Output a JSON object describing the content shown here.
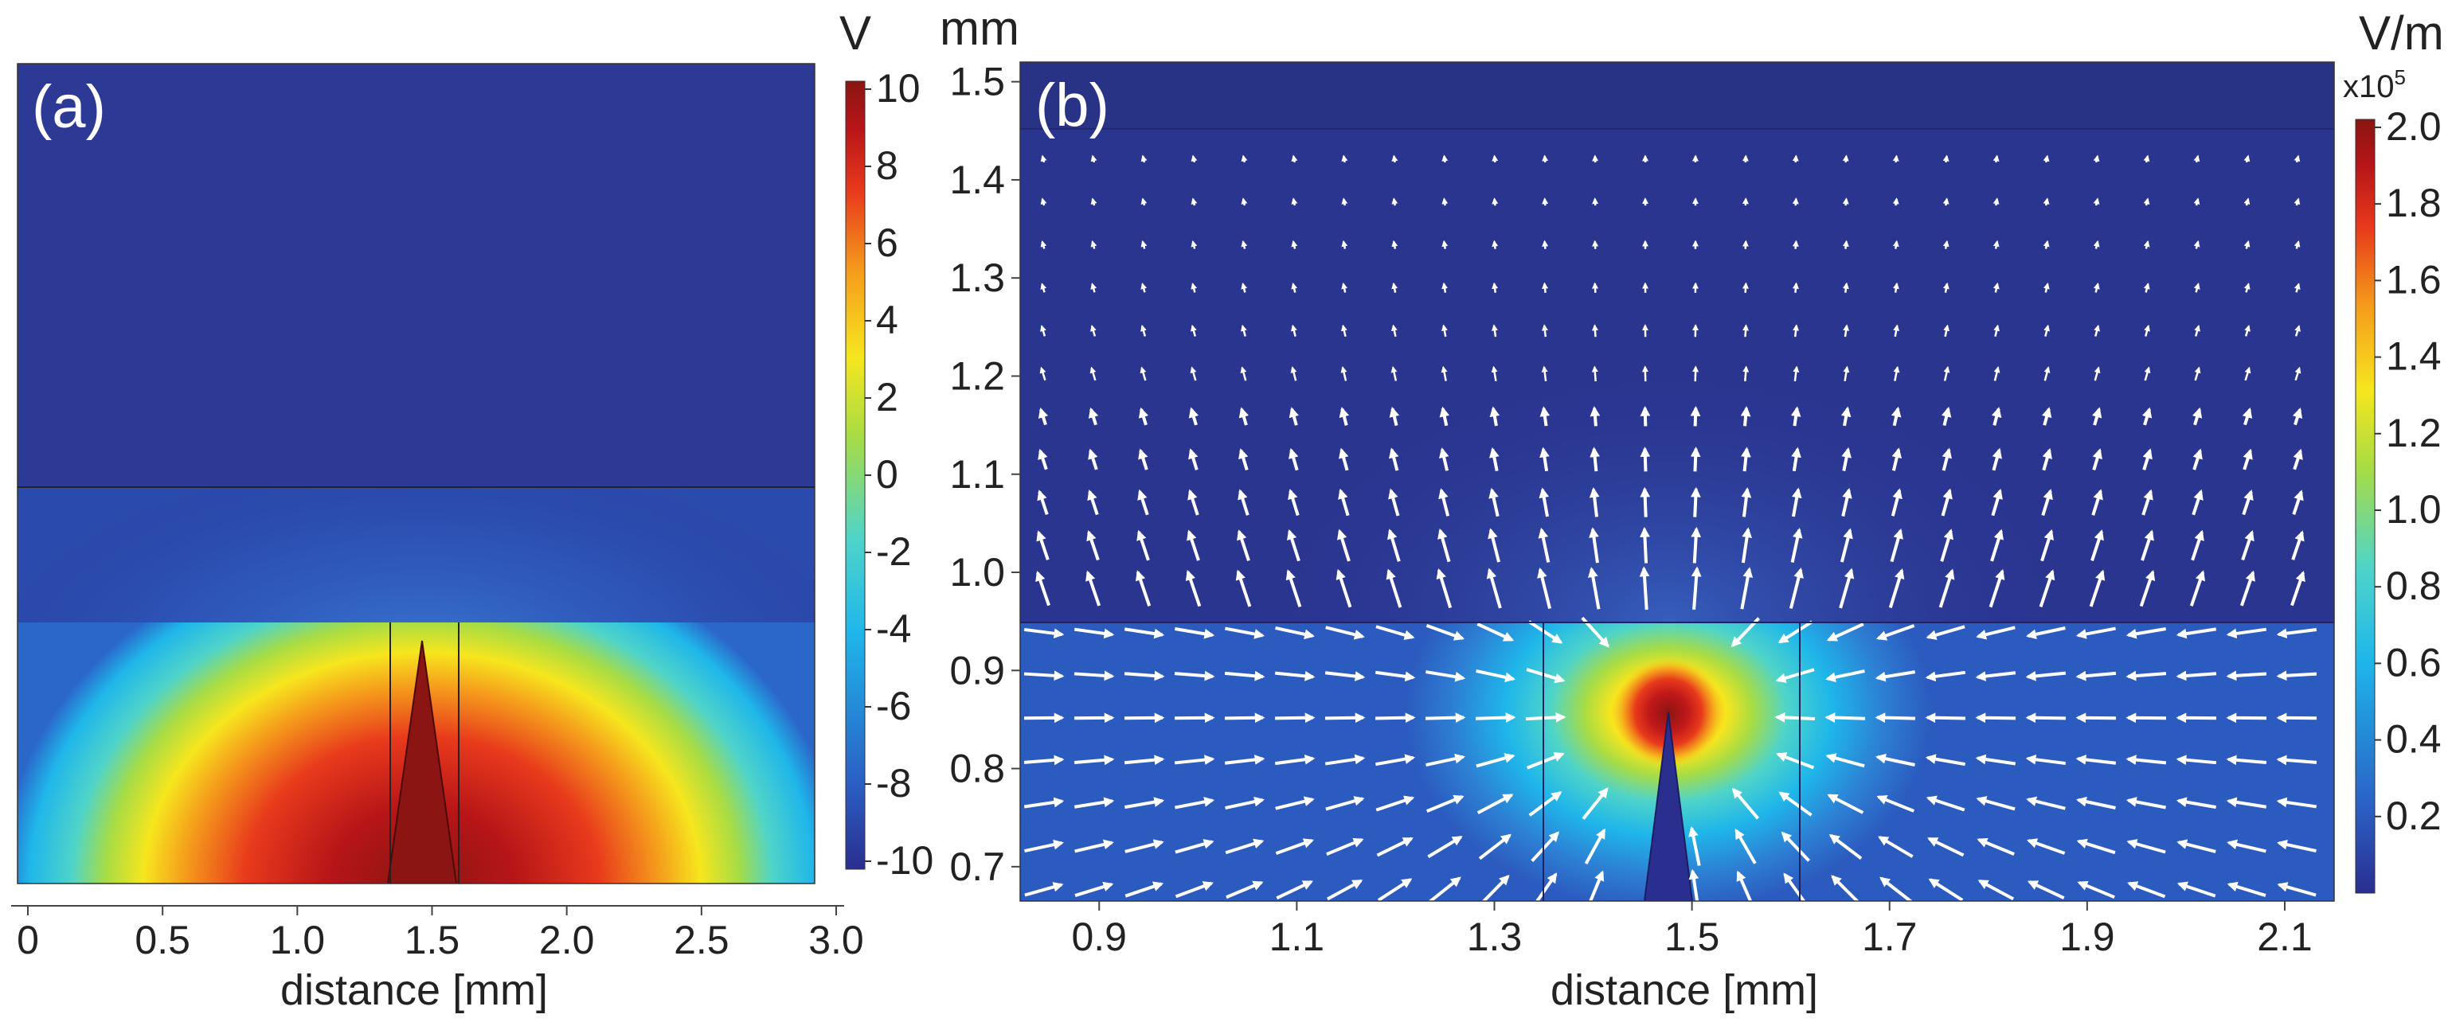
{
  "chart_data": [
    {
      "type": "heatmap",
      "panel_label": "(a)",
      "xlabel": "distance [mm]",
      "x_ticks": [
        "0",
        "0.5",
        "1.0",
        "1.5",
        "2.0",
        "2.5",
        "3.0"
      ],
      "x_tick_values": [
        0,
        0.5,
        1.0,
        1.5,
        2.0,
        2.5,
        3.0
      ],
      "xlim": [
        0,
        2.95
      ],
      "colorbar": {
        "unit": "V",
        "range": [
          -10,
          10
        ],
        "ticks": [
          "10",
          "8",
          "6",
          "4",
          "2",
          "0",
          "-2",
          "-4",
          "-6",
          "-8",
          "-10"
        ],
        "tick_values": [
          10,
          8,
          6,
          4,
          2,
          0,
          -2,
          -4,
          -6,
          -8,
          -10
        ],
        "colormap": [
          "#2a2e8e",
          "#2b5fc4",
          "#1fb6ea",
          "#4fd4c9",
          "#a8dc44",
          "#f6e61e",
          "#f59b1c",
          "#e83a1c",
          "#b71518",
          "#8a1512"
        ]
      },
      "field": "electric potential, +10 V at electrode tip decaying to -10 V"
    },
    {
      "type": "heatmap",
      "panel_label": "(b)",
      "xlabel": "distance [mm]",
      "ylabel": "mm",
      "x_ticks": [
        "0.9",
        "1.1",
        "1.3",
        "1.5",
        "1.7",
        "1.9",
        "2.1"
      ],
      "x_tick_values": [
        0.9,
        1.1,
        1.3,
        1.5,
        1.7,
        1.9,
        2.1
      ],
      "xlim": [
        0.82,
        2.15
      ],
      "y_ticks": [
        "1.5",
        "1.4",
        "1.3",
        "1.2",
        "1.1",
        "1.0",
        "0.9",
        "0.8",
        "0.7"
      ],
      "y_tick_values": [
        1.5,
        1.4,
        1.3,
        1.2,
        1.1,
        1.0,
        0.9,
        0.8,
        0.7
      ],
      "ylim": [
        0.665,
        1.52
      ],
      "colorbar": {
        "unit": "V/m",
        "multiplier": "x10",
        "exponent": "5",
        "range": [
          0,
          2.0
        ],
        "ticks": [
          "2.0",
          "1.8",
          "1.6",
          "1.4",
          "1.2",
          "1.0",
          "0.8",
          "0.6",
          "0.4",
          "0.2"
        ],
        "tick_values": [
          2.0,
          1.8,
          1.6,
          1.4,
          1.2,
          1.0,
          0.8,
          0.6,
          0.4,
          0.2
        ],
        "colormap": [
          "#2a2e8e",
          "#2b5fc4",
          "#1fb6ea",
          "#4fd4c9",
          "#a8dc44",
          "#f6e61e",
          "#f59b1c",
          "#e83a1c",
          "#b71518",
          "#8a1512"
        ]
      },
      "field": "electric field magnitude with white direction arrows, peak at electrode tip (1.48, 0.86)",
      "arrow_color": "#ffffff"
    }
  ]
}
